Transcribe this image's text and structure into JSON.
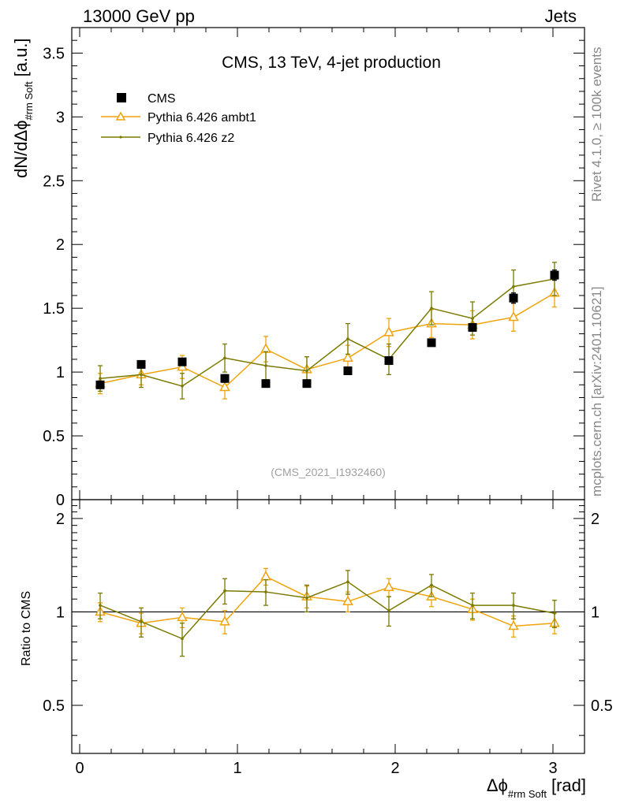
{
  "header": {
    "left": "13000 GeV pp",
    "right": "Jets"
  },
  "side_labels": {
    "rivet": "Rivet 4.1.0, ≥ 100k events",
    "mcplots": "mcplots.cern.ch [arXiv:2401.10621]"
  },
  "colors": {
    "cms": "#000000",
    "ambt1": "#f0a30a",
    "z2": "#7a7a00",
    "ref_line": "#000000",
    "watermark": "#a0a0a0"
  },
  "chart_data": [
    {
      "type": "scatter",
      "panel": "main",
      "title": "CMS, 13 TeV, 4-jet production",
      "ylabel": "dN/dΔϕ",
      "ylabel_sub": "#rm Soft",
      "ylabel_unit": "[a.u.]",
      "ylim": [
        0,
        3.7
      ],
      "yticks": [
        0,
        0.5,
        1,
        1.5,
        2,
        2.5,
        3,
        3.5
      ],
      "ytick_labels": [
        "0",
        "0.5",
        "1",
        "1.5",
        "2",
        "2.5",
        "3",
        "3.5"
      ],
      "xlim": [
        -0.05,
        3.2
      ],
      "legend_position": "top-left",
      "watermark": "(CMS_2021_I1932460)",
      "x": [
        0.13,
        0.39,
        0.65,
        0.92,
        1.18,
        1.44,
        1.7,
        1.96,
        2.23,
        2.49,
        2.75,
        3.01
      ],
      "series": [
        {
          "name": "CMS",
          "marker": "square",
          "values": [
            0.9,
            1.06,
            1.08,
            0.95,
            0.91,
            0.91,
            1.01,
            1.09,
            1.23,
            1.35,
            1.58,
            1.76
          ],
          "errors": [
            0.02,
            0.02,
            0.02,
            0.03,
            0.02,
            0.02,
            0.03,
            0.03,
            0.02,
            0.03,
            0.04,
            0.04
          ]
        },
        {
          "name": "Pythia 6.426 ambt1",
          "marker": "triangle",
          "values": [
            0.91,
            0.98,
            1.04,
            0.88,
            1.18,
            1.02,
            1.11,
            1.31,
            1.38,
            1.37,
            1.43,
            1.62
          ],
          "errors": [
            0.08,
            0.08,
            0.09,
            0.09,
            0.1,
            0.1,
            0.1,
            0.11,
            0.11,
            0.11,
            0.11,
            0.11
          ]
        },
        {
          "name": "Pythia 6.426 z2",
          "marker": "dot",
          "values": [
            0.95,
            0.98,
            0.89,
            1.11,
            1.05,
            1.01,
            1.26,
            1.1,
            1.5,
            1.42,
            1.67,
            1.73
          ],
          "errors": [
            0.1,
            0.1,
            0.1,
            0.11,
            0.11,
            0.11,
            0.12,
            0.12,
            0.13,
            0.13,
            0.13,
            0.13
          ]
        }
      ]
    },
    {
      "type": "scatter",
      "panel": "ratio",
      "ylabel": "Ratio to CMS",
      "ylim": [
        0.35,
        2.3
      ],
      "yticks": [
        0.5,
        1,
        2
      ],
      "ytick_labels": [
        "0.5",
        "1",
        "2"
      ],
      "xlabel": "Δϕ",
      "xlabel_sub": "#rm Soft",
      "xlabel_unit": "[rad]",
      "xlim": [
        -0.05,
        3.2
      ],
      "xticks": [
        0,
        1,
        2,
        3
      ],
      "xtick_labels": [
        "0",
        "1",
        "2",
        "3"
      ],
      "reference": 1,
      "x": [
        0.13,
        0.39,
        0.65,
        0.92,
        1.18,
        1.44,
        1.7,
        1.96,
        2.23,
        2.49,
        2.75,
        3.01
      ],
      "series": [
        {
          "name": "Pythia 6.426 ambt1",
          "marker": "triangle",
          "values": [
            1.0,
            0.92,
            0.96,
            0.93,
            1.3,
            1.12,
            1.08,
            1.2,
            1.12,
            1.02,
            0.9,
            0.92
          ],
          "errors": [
            0.07,
            0.07,
            0.07,
            0.08,
            0.08,
            0.09,
            0.08,
            0.08,
            0.08,
            0.08,
            0.07,
            0.07
          ]
        },
        {
          "name": "Pythia 6.426 z2",
          "marker": "dot",
          "values": [
            1.05,
            0.93,
            0.82,
            1.17,
            1.16,
            1.11,
            1.25,
            1.01,
            1.22,
            1.05,
            1.05,
            0.99
          ],
          "errors": [
            0.1,
            0.1,
            0.1,
            0.11,
            0.11,
            0.11,
            0.11,
            0.11,
            0.1,
            0.1,
            0.1,
            0.1
          ]
        }
      ]
    }
  ]
}
